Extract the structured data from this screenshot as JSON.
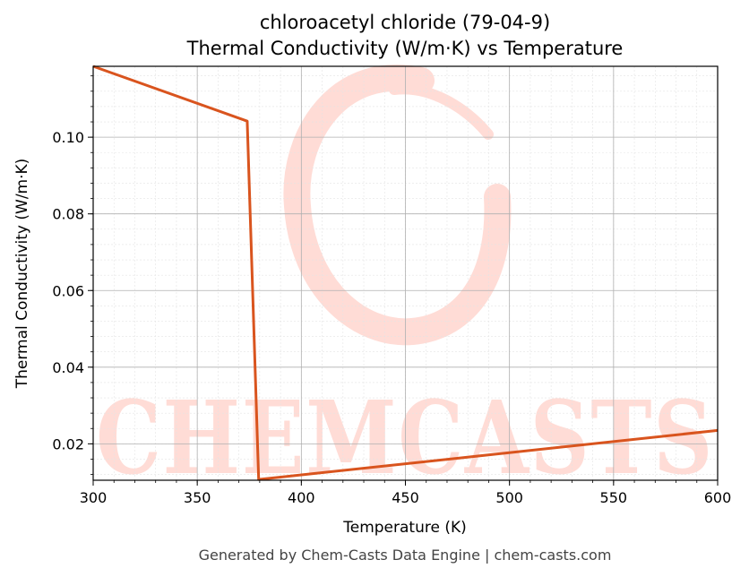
{
  "chart_data": {
    "type": "line",
    "title": "chloroacetyl chloride (79-04-9)",
    "subtitle": "Thermal Conductivity (W/m·K) vs Temperature",
    "xlabel": "Temperature (K)",
    "ylabel": "Thermal Conductivity (W/m·K)",
    "xlim": [
      300,
      600
    ],
    "ylim": [
      0.0105,
      0.1185
    ],
    "xticks": [
      300,
      350,
      400,
      450,
      500,
      550,
      600
    ],
    "yticks": [
      0.02,
      0.04,
      0.06,
      0.08,
      0.1
    ],
    "xtick_labels": [
      "300",
      "350",
      "400",
      "450",
      "500",
      "550",
      "600"
    ],
    "ytick_labels": [
      "0.02",
      "0.04",
      "0.06",
      "0.08",
      "0.10"
    ],
    "grid": true,
    "series": [
      {
        "color": "#d9541e",
        "x": [
          300,
          374,
          379.5,
          600
        ],
        "y": [
          0.1185,
          0.1042,
          0.0107,
          0.0235
        ]
      }
    ]
  },
  "watermark": {
    "text": "CHEMCASTS",
    "color": "#ffdcd6"
  },
  "footer": "Generated by Chem-Casts Data Engine | chem-casts.com"
}
